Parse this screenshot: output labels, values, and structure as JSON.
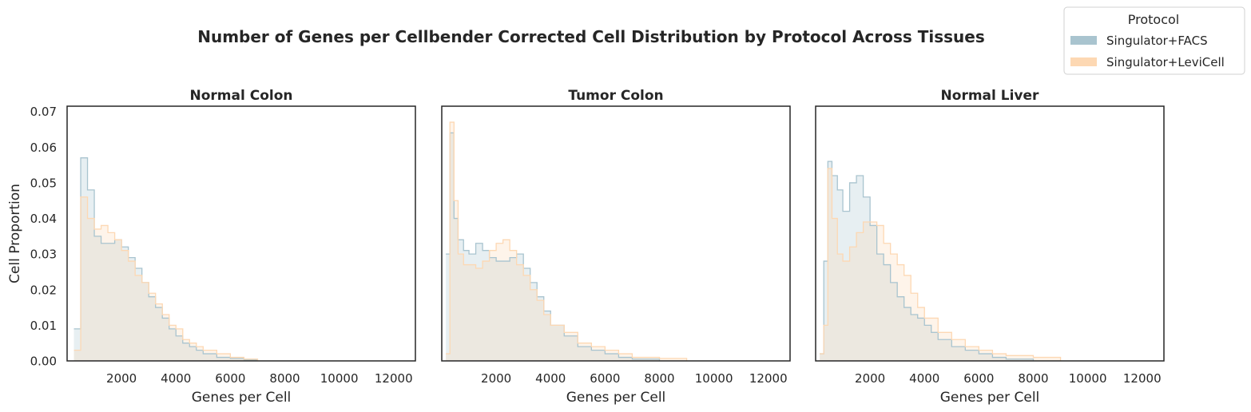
{
  "title": "Number of Genes per Cellbender Corrected Cell Distribution by Protocol Across Tissues",
  "legend": {
    "title": "Protocol",
    "placement": "top-right",
    "items": [
      {
        "label": "Singulator+FACS",
        "color": "#a9c4cf"
      },
      {
        "label": "Singulator+LeviCell",
        "color": "#fdd8b3"
      }
    ]
  },
  "colors": {
    "facs": "#a9c4cf",
    "levicell": "#fdd8b3",
    "overlap": "#ece8e3"
  },
  "chart_data": [
    {
      "type": "area",
      "subtitle": "Normal Colon",
      "xlabel": "Genes per Cell",
      "ylabel": "Cell Proportion",
      "xlim": [
        0,
        12800
      ],
      "ylim": [
        0,
        0.0715
      ],
      "xticks": [
        2000,
        4000,
        6000,
        8000,
        10000,
        12000
      ],
      "yticks": [
        0.0,
        0.01,
        0.02,
        0.03,
        0.04,
        0.05,
        0.06,
        0.07
      ],
      "ytick_labels": [
        "0.00",
        "0.01",
        "0.02",
        "0.03",
        "0.04",
        "0.05",
        "0.06",
        "0.07"
      ],
      "grid": false,
      "series": [
        {
          "name": "Singulator+FACS",
          "x": [
            250,
            500,
            750,
            1000,
            1250,
            1500,
            1750,
            2000,
            2250,
            2500,
            2750,
            3000,
            3250,
            3500,
            3750,
            4000,
            4250,
            4500,
            4750,
            5000,
            5500,
            6000,
            6500,
            7000
          ],
          "y": [
            0.009,
            0.057,
            0.048,
            0.035,
            0.033,
            0.033,
            0.034,
            0.032,
            0.029,
            0.026,
            0.022,
            0.018,
            0.015,
            0.012,
            0.009,
            0.007,
            0.005,
            0.004,
            0.003,
            0.002,
            0.001,
            0.0007,
            0.0003,
            0.0
          ]
        },
        {
          "name": "Singulator+LeviCell",
          "x": [
            250,
            500,
            750,
            1000,
            1250,
            1500,
            1750,
            2000,
            2250,
            2500,
            2750,
            3000,
            3250,
            3500,
            3750,
            4000,
            4250,
            4500,
            4750,
            5000,
            5500,
            6000,
            6500,
            7000
          ],
          "y": [
            0.003,
            0.046,
            0.04,
            0.037,
            0.038,
            0.036,
            0.034,
            0.031,
            0.028,
            0.024,
            0.022,
            0.019,
            0.016,
            0.013,
            0.01,
            0.009,
            0.006,
            0.005,
            0.004,
            0.003,
            0.002,
            0.001,
            0.0005,
            0.0
          ]
        }
      ]
    },
    {
      "type": "area",
      "subtitle": "Tumor Colon",
      "xlabel": "Genes per Cell",
      "ylabel": "",
      "xlim": [
        0,
        12800
      ],
      "ylim": [
        0,
        0.0715
      ],
      "xticks": [
        2000,
        4000,
        6000,
        8000,
        10000,
        12000
      ],
      "grid": false,
      "series": [
        {
          "name": "Singulator+FACS",
          "x": [
            150,
            300,
            450,
            600,
            800,
            1000,
            1250,
            1500,
            1750,
            2000,
            2250,
            2500,
            2750,
            3000,
            3250,
            3500,
            3750,
            4000,
            4500,
            5000,
            5500,
            6000,
            6500,
            7000,
            8000
          ],
          "y": [
            0.03,
            0.064,
            0.04,
            0.034,
            0.031,
            0.03,
            0.033,
            0.031,
            0.029,
            0.028,
            0.028,
            0.029,
            0.03,
            0.026,
            0.022,
            0.018,
            0.014,
            0.01,
            0.007,
            0.004,
            0.003,
            0.002,
            0.001,
            0.0005,
            0.0
          ]
        },
        {
          "name": "Singulator+LeviCell",
          "x": [
            150,
            300,
            450,
            600,
            800,
            1000,
            1250,
            1500,
            1750,
            2000,
            2250,
            2500,
            2750,
            3000,
            3250,
            3500,
            3750,
            4000,
            4500,
            5000,
            5500,
            6000,
            6500,
            7000,
            8000,
            9000
          ],
          "y": [
            0.002,
            0.067,
            0.045,
            0.03,
            0.027,
            0.027,
            0.026,
            0.028,
            0.031,
            0.033,
            0.034,
            0.031,
            0.027,
            0.024,
            0.02,
            0.017,
            0.013,
            0.01,
            0.008,
            0.005,
            0.004,
            0.003,
            0.002,
            0.001,
            0.0007,
            0.0
          ]
        }
      ]
    },
    {
      "type": "area",
      "subtitle": "Normal Liver",
      "xlabel": "Genes per Cell",
      "ylabel": "",
      "xlim": [
        0,
        12800
      ],
      "ylim": [
        0,
        0.0715
      ],
      "xticks": [
        2000,
        4000,
        6000,
        8000,
        10000,
        12000
      ],
      "grid": false,
      "series": [
        {
          "name": "Singulator+FACS",
          "x": [
            150,
            300,
            450,
            600,
            800,
            1000,
            1250,
            1500,
            1750,
            2000,
            2250,
            2500,
            2750,
            3000,
            3250,
            3500,
            3750,
            4000,
            4250,
            4500,
            5000,
            5500,
            6000,
            6500,
            7000,
            8000
          ],
          "y": [
            0.002,
            0.028,
            0.056,
            0.052,
            0.048,
            0.042,
            0.05,
            0.052,
            0.046,
            0.038,
            0.03,
            0.027,
            0.022,
            0.018,
            0.015,
            0.013,
            0.012,
            0.01,
            0.008,
            0.006,
            0.004,
            0.003,
            0.002,
            0.001,
            0.0005,
            0.0
          ]
        },
        {
          "name": "Singulator+LeviCell",
          "x": [
            150,
            300,
            450,
            600,
            800,
            1000,
            1250,
            1500,
            1750,
            2000,
            2250,
            2500,
            2750,
            3000,
            3250,
            3500,
            3750,
            4000,
            4500,
            5000,
            5500,
            6000,
            6500,
            7000,
            8000,
            9000
          ],
          "y": [
            0.002,
            0.01,
            0.054,
            0.04,
            0.03,
            0.028,
            0.032,
            0.036,
            0.039,
            0.039,
            0.038,
            0.033,
            0.03,
            0.027,
            0.024,
            0.019,
            0.015,
            0.012,
            0.008,
            0.006,
            0.004,
            0.003,
            0.002,
            0.0015,
            0.001,
            0.0
          ]
        }
      ]
    }
  ]
}
